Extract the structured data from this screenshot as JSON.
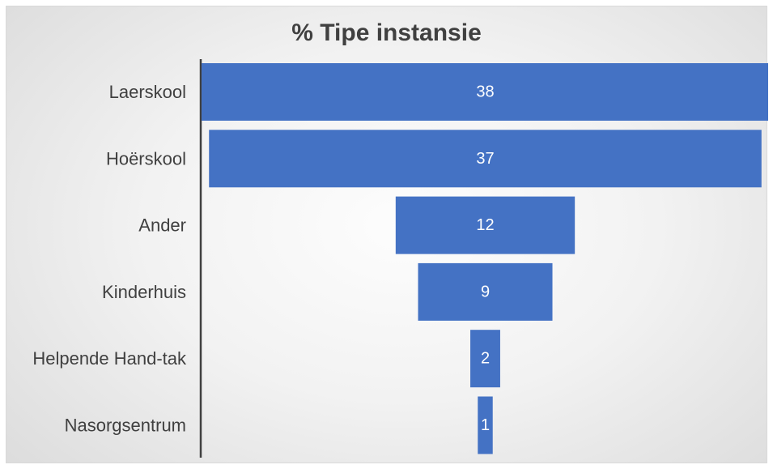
{
  "chart_data": {
    "type": "bar",
    "orientation": "horizontal",
    "style": "funnel",
    "title": "% Tipe instansie",
    "categories": [
      "Laerskool",
      "Hoërskool",
      "Ander",
      "Kinderhuis",
      "Helpende Hand-tak",
      "Nasorgsentrum"
    ],
    "values": [
      38,
      37,
      12,
      9,
      2,
      1
    ],
    "xlim": [
      0,
      38
    ],
    "bar_color": "#4472c4",
    "label_color": "#ffffff",
    "grid": false,
    "legend": "none"
  }
}
